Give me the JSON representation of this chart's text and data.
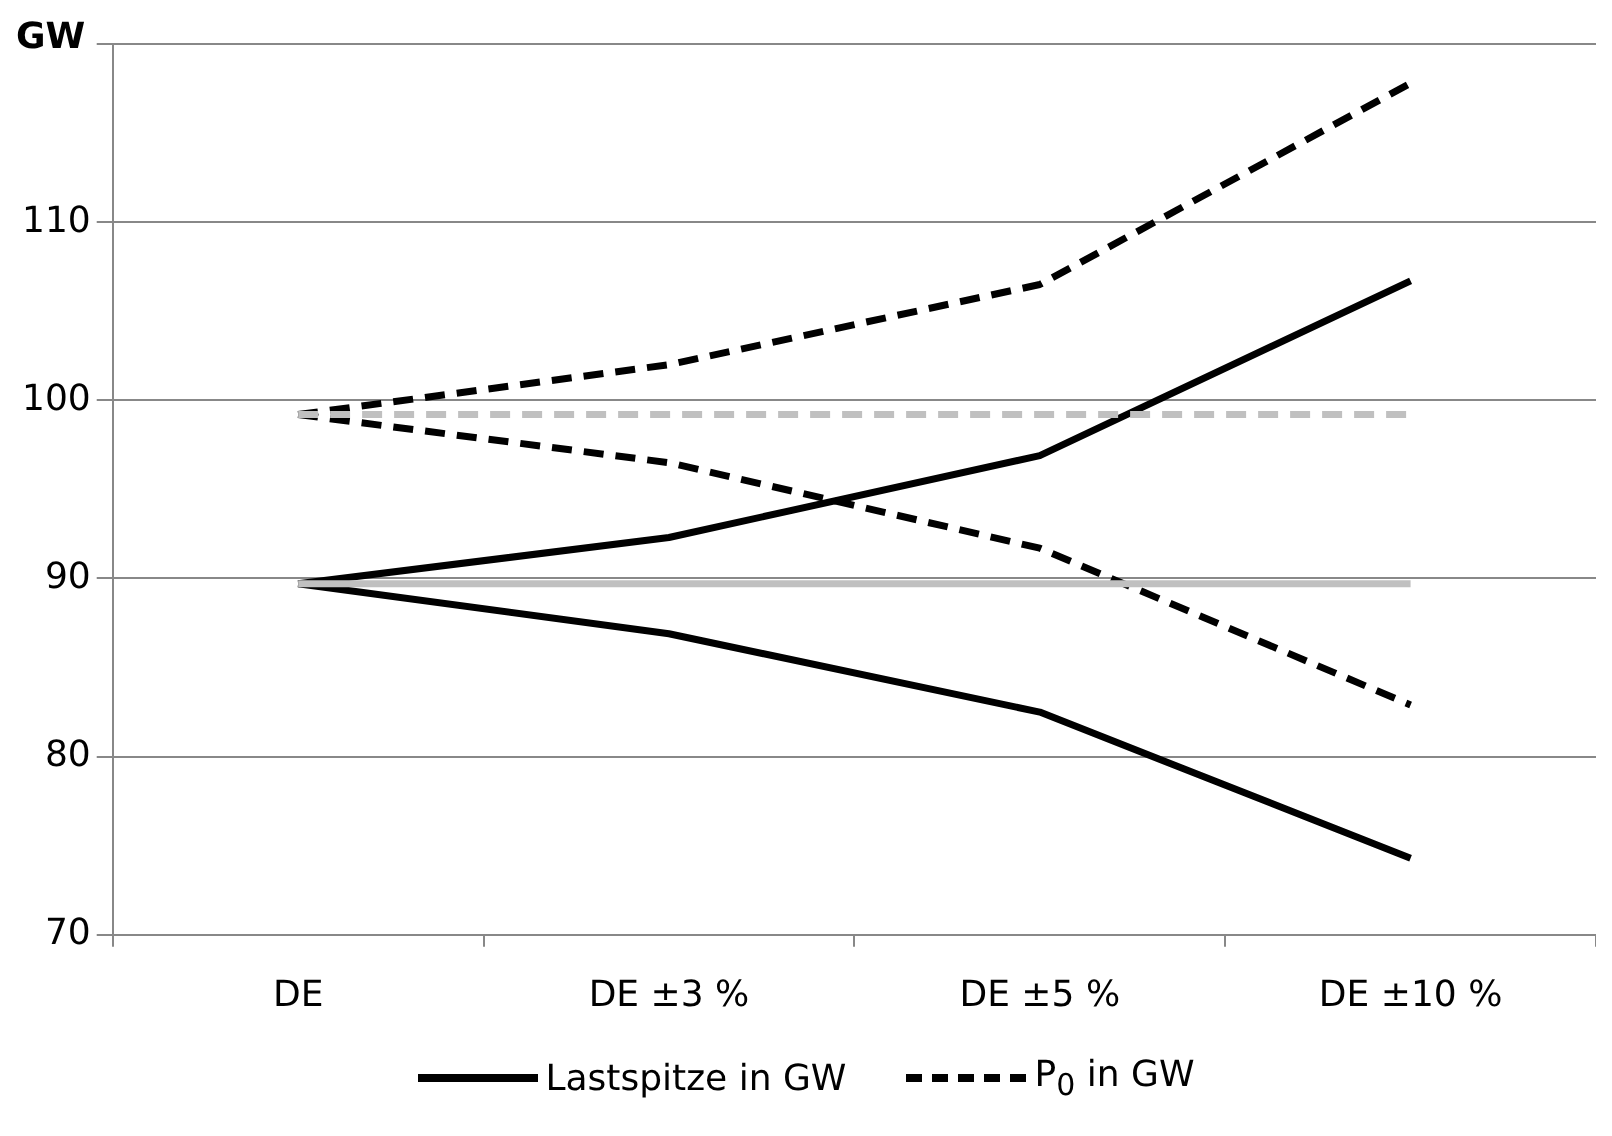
{
  "chart_data": {
    "type": "line",
    "ylabel": "GW",
    "categories": [
      "DE",
      "DE ±3 %",
      "DE ±5 %",
      "DE ±10 %"
    ],
    "series": [
      {
        "name": "Lastspitze in GW",
        "color": "#000000",
        "line_style": "solid",
        "values": [
          89.7,
          92.3,
          96.9,
          106.7
        ]
      },
      {
        "color": "#000000",
        "line_style": "solid",
        "values": [
          89.7,
          86.9,
          82.5,
          74.3
        ]
      },
      {
        "name": "P$_{0}$ in GW",
        "color": "#000000",
        "line_style": "dashed",
        "values": [
          99.2,
          102.0,
          106.5,
          117.8
        ]
      },
      {
        "color": "#000000",
        "line_style": "dashed",
        "values": [
          99.2,
          96.5,
          91.7,
          82.9
        ]
      },
      {
        "color": "#c0c0c0",
        "line_style": "solid",
        "values": [
          89.7,
          89.7,
          89.7,
          89.7
        ]
      },
      {
        "color": "#c0c0c0",
        "line_style": "dashed",
        "values": [
          99.2,
          99.2,
          99.2,
          99.2
        ]
      }
    ],
    "ylim": [
      70,
      120
    ],
    "yticks": [
      70,
      80,
      90,
      100,
      110,
      {
        "value": 120,
        "label": null
      }
    ],
    "grid": "y",
    "legend": "bottom",
    "marker": "none"
  }
}
